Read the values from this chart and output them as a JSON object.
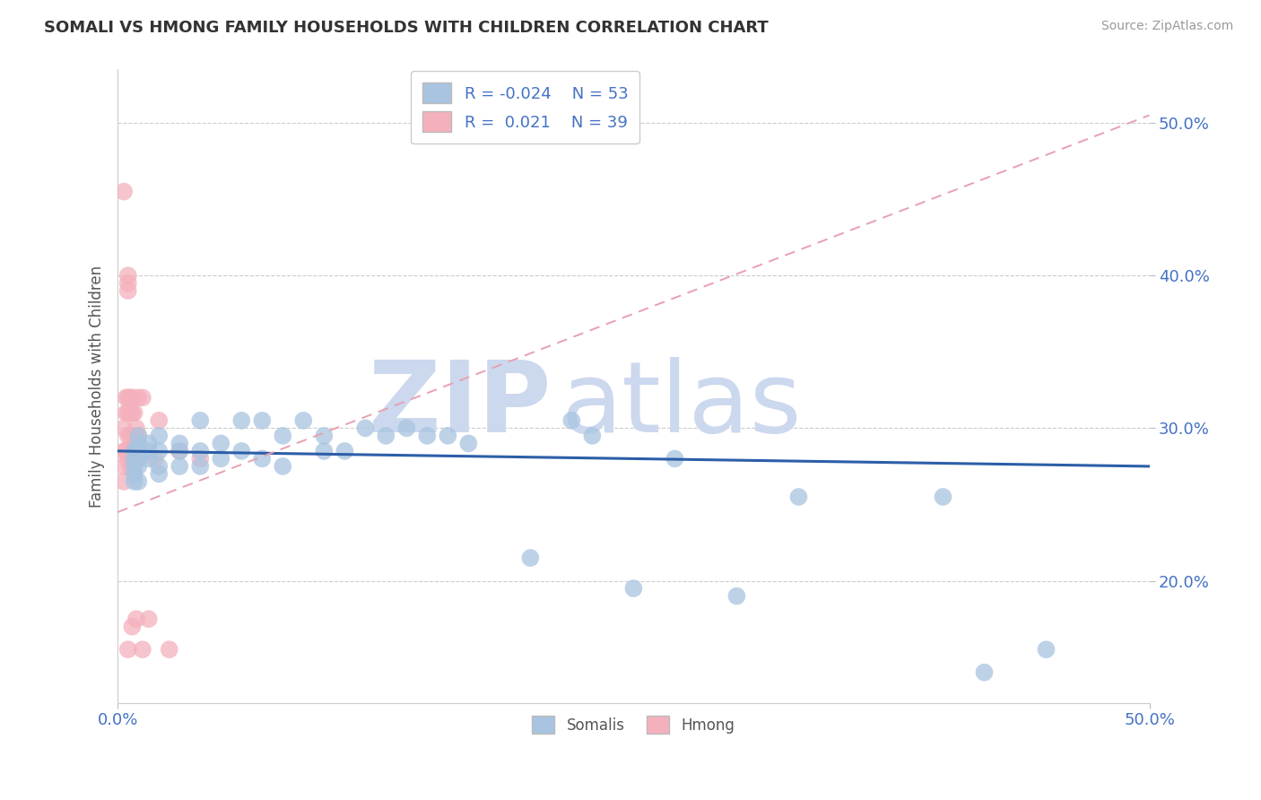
{
  "title": "SOMALI VS HMONG FAMILY HOUSEHOLDS WITH CHILDREN CORRELATION CHART",
  "source": "Source: ZipAtlas.com",
  "ylabel": "Family Households with Children",
  "xlim": [
    0.0,
    0.5
  ],
  "ylim": [
    0.12,
    0.535
  ],
  "xticks": [
    0.0,
    0.5
  ],
  "xticklabels": [
    "0.0%",
    "50.0%"
  ],
  "yticks": [
    0.2,
    0.3,
    0.4,
    0.5
  ],
  "yticklabels": [
    "20.0%",
    "30.0%",
    "40.0%",
    "50.0%"
  ],
  "somali_R": -0.024,
  "somali_N": 53,
  "hmong_R": 0.021,
  "hmong_N": 39,
  "somali_color": "#a8c4e0",
  "hmong_color": "#f4b0bc",
  "somali_line_color": "#2c5ea8",
  "hmong_line_color": "#e8a0b0",
  "watermark_zip": "ZIP",
  "watermark_atlas": "atlas",
  "watermark_color": "#ccd8ee",
  "tick_color": "#4472c4",
  "legend_label_color": "#4472c4",
  "somali_x": [
    0.008,
    0.008,
    0.008,
    0.008,
    0.008,
    0.009,
    0.01,
    0.01,
    0.01,
    0.01,
    0.01,
    0.01,
    0.015,
    0.015,
    0.015,
    0.02,
    0.02,
    0.02,
    0.02,
    0.03,
    0.03,
    0.03,
    0.04,
    0.04,
    0.04,
    0.05,
    0.05,
    0.06,
    0.06,
    0.07,
    0.07,
    0.08,
    0.08,
    0.09,
    0.1,
    0.1,
    0.11,
    0.12,
    0.13,
    0.14,
    0.15,
    0.16,
    0.17,
    0.2,
    0.22,
    0.23,
    0.25,
    0.27,
    0.3,
    0.33,
    0.4,
    0.42,
    0.45
  ],
  "somali_y": [
    0.285,
    0.275,
    0.265,
    0.27,
    0.28,
    0.285,
    0.295,
    0.29,
    0.285,
    0.28,
    0.275,
    0.265,
    0.29,
    0.285,
    0.28,
    0.295,
    0.285,
    0.275,
    0.27,
    0.29,
    0.285,
    0.275,
    0.305,
    0.285,
    0.275,
    0.29,
    0.28,
    0.305,
    0.285,
    0.305,
    0.28,
    0.295,
    0.275,
    0.305,
    0.295,
    0.285,
    0.285,
    0.3,
    0.295,
    0.3,
    0.295,
    0.295,
    0.29,
    0.215,
    0.305,
    0.295,
    0.195,
    0.28,
    0.19,
    0.255,
    0.255,
    0.14,
    0.155
  ],
  "hmong_x": [
    0.003,
    0.003,
    0.003,
    0.003,
    0.003,
    0.004,
    0.004,
    0.004,
    0.005,
    0.005,
    0.005,
    0.005,
    0.005,
    0.005,
    0.005,
    0.005,
    0.006,
    0.006,
    0.006,
    0.006,
    0.006,
    0.007,
    0.007,
    0.007,
    0.007,
    0.008,
    0.008,
    0.009,
    0.009,
    0.01,
    0.01,
    0.012,
    0.012,
    0.015,
    0.018,
    0.02,
    0.025,
    0.03,
    0.04
  ],
  "hmong_y": [
    0.455,
    0.3,
    0.285,
    0.275,
    0.265,
    0.32,
    0.31,
    0.285,
    0.4,
    0.395,
    0.39,
    0.32,
    0.31,
    0.295,
    0.28,
    0.155,
    0.32,
    0.31,
    0.295,
    0.285,
    0.275,
    0.32,
    0.31,
    0.28,
    0.17,
    0.31,
    0.295,
    0.3,
    0.175,
    0.32,
    0.295,
    0.32,
    0.155,
    0.175,
    0.28,
    0.305,
    0.155,
    0.285,
    0.28
  ],
  "hmong_line_x0": 0.0,
  "hmong_line_x1": 0.5,
  "hmong_line_y0": 0.245,
  "hmong_line_y1": 0.505,
  "somali_line_x0": 0.0,
  "somali_line_x1": 0.5,
  "somali_line_y0": 0.285,
  "somali_line_y1": 0.275
}
